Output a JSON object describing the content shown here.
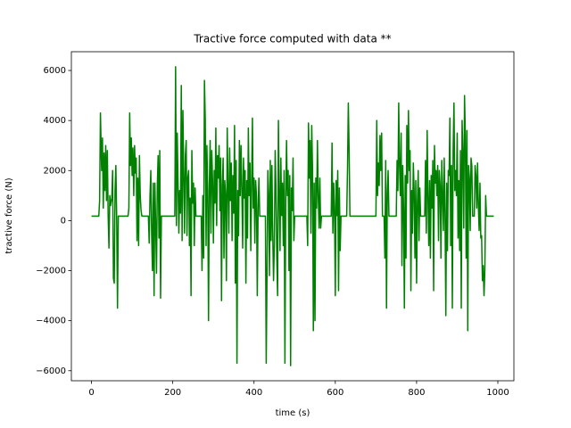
{
  "chart_data": {
    "type": "line",
    "title": "Tractive force computed with data **",
    "xlabel": "time (s)",
    "ylabel": "tractive force (N)",
    "color": "#008000",
    "xlim": [
      -49.5,
      1039.5
    ],
    "ylim": [
      -6400,
      6750
    ],
    "xticks": [
      0,
      200,
      400,
      600,
      800,
      1000
    ],
    "yticks": [
      {
        "value": -6000,
        "label": "−6000"
      },
      {
        "value": -4000,
        "label": "−4000"
      },
      {
        "value": -2000,
        "label": "−2000"
      },
      0,
      2000,
      4000,
      6000
    ],
    "x": [
      0,
      18,
      20,
      22,
      25,
      27,
      29,
      31,
      33,
      35,
      37,
      39,
      41,
      43,
      45,
      47,
      50,
      52,
      54,
      56,
      58,
      60,
      62,
      64,
      66,
      90,
      92,
      94,
      96,
      98,
      100,
      102,
      104,
      106,
      108,
      110,
      112,
      114,
      116,
      118,
      120,
      122,
      124,
      140,
      142,
      144,
      146,
      148,
      150,
      152,
      154,
      156,
      158,
      160,
      162,
      164,
      166,
      168,
      170,
      172,
      195,
      205,
      207,
      209,
      211,
      213,
      215,
      217,
      219,
      221,
      223,
      225,
      227,
      229,
      231,
      233,
      235,
      237,
      239,
      241,
      243,
      245,
      247,
      249,
      251,
      253,
      255,
      257,
      270,
      272,
      274,
      276,
      278,
      280,
      282,
      284,
      286,
      288,
      290,
      292,
      294,
      296,
      298,
      300,
      302,
      304,
      306,
      308,
      310,
      312,
      314,
      316,
      318,
      320,
      322,
      324,
      326,
      328,
      330,
      332,
      334,
      336,
      338,
      340,
      342,
      344,
      346,
      348,
      350,
      352,
      354,
      356,
      358,
      360,
      362,
      364,
      366,
      368,
      370,
      372,
      374,
      376,
      378,
      380,
      382,
      384,
      386,
      388,
      390,
      392,
      394,
      396,
      398,
      400,
      402,
      404,
      406,
      408,
      410,
      412,
      414,
      428,
      430,
      432,
      434,
      436,
      438,
      440,
      442,
      444,
      446,
      448,
      450,
      452,
      454,
      456,
      458,
      460,
      462,
      464,
      466,
      468,
      470,
      472,
      474,
      476,
      478,
      480,
      482,
      484,
      486,
      488,
      490,
      492,
      494,
      496,
      498,
      500,
      520,
      530,
      532,
      534,
      536,
      538,
      540,
      542,
      544,
      546,
      548,
      550,
      552,
      554,
      556,
      558,
      560,
      562,
      564,
      566,
      590,
      592,
      594,
      596,
      598,
      600,
      602,
      604,
      606,
      608,
      610,
      612,
      614,
      628,
      630,
      632,
      634,
      636,
      700,
      702,
      704,
      706,
      708,
      710,
      712,
      714,
      716,
      720,
      722,
      724,
      726,
      728,
      730,
      732,
      750,
      752,
      754,
      756,
      758,
      760,
      762,
      764,
      766,
      768,
      770,
      772,
      774,
      776,
      778,
      780,
      782,
      784,
      786,
      788,
      790,
      792,
      794,
      796,
      798,
      800,
      802,
      804,
      806,
      808,
      810,
      820,
      822,
      824,
      826,
      828,
      830,
      832,
      834,
      836,
      838,
      840,
      842,
      844,
      846,
      848,
      850,
      852,
      854,
      856,
      858,
      860,
      862,
      864,
      866,
      868,
      870,
      872,
      874,
      876,
      878,
      880,
      882,
      884,
      886,
      888,
      890,
      892,
      894,
      896,
      898,
      900,
      902,
      904,
      906,
      908,
      910,
      912,
      914,
      916,
      918,
      920,
      922,
      924,
      926,
      928,
      930,
      932,
      934,
      936,
      938,
      942,
      944,
      946,
      948,
      950,
      952,
      954,
      956,
      958,
      960,
      962,
      964,
      966,
      968,
      970,
      972,
      990
    ],
    "values": [
      180,
      180,
      800,
      4300,
      2000,
      3300,
      500,
      2700,
      1200,
      3000,
      800,
      2800,
      200,
      -1100,
      1000,
      600,
      900,
      2000,
      -2300,
      -2500,
      1200,
      2200,
      100,
      -3500,
      180,
      180,
      500,
      4300,
      2200,
      3300,
      1800,
      2900,
      1000,
      3000,
      1900,
      2500,
      -800,
      1700,
      -1000,
      2600,
      1000,
      400,
      180,
      180,
      -900,
      1000,
      2000,
      -500,
      -2000,
      1500,
      -3000,
      1500,
      -200,
      -2100,
      1400,
      2600,
      -700,
      2800,
      -3100,
      180,
      180,
      180,
      6150,
      -200,
      3500,
      1500,
      -500,
      1200,
      300,
      5400,
      -800,
      4400,
      1800,
      -500,
      2600,
      3200,
      -600,
      1700,
      2000,
      -1000,
      900,
      -3000,
      2800,
      700,
      1500,
      -1000,
      1300,
      180,
      180,
      -2000,
      1000,
      -1500,
      5600,
      4000,
      -1000,
      3000,
      1200,
      -4000,
      1400,
      3200,
      -500,
      2800,
      1600,
      -900,
      2000,
      700,
      3700,
      -200,
      2600,
      1700,
      3000,
      400,
      2500,
      -3200,
      1400,
      2500,
      -1500,
      1600,
      1000,
      -2400,
      3700,
      1300,
      -500,
      2900,
      800,
      2300,
      -800,
      1800,
      300,
      3800,
      -2500,
      2400,
      -5700,
      1200,
      -600,
      3200,
      1000,
      3000,
      1300,
      -1100,
      2500,
      900,
      2000,
      -2500,
      1600,
      -700,
      3700,
      1000,
      2300,
      -1200,
      1400,
      4100,
      500,
      1700,
      -900,
      1600,
      1000,
      -3000,
      500,
      1700,
      180,
      180,
      -5700,
      -2000,
      2000,
      1100,
      -2200,
      2400,
      -800,
      2200,
      -500,
      -2400,
      -1000,
      2800,
      1300,
      -1500,
      -3000,
      4000,
      1200,
      -1200,
      2500,
      200,
      1500,
      -1000,
      2000,
      -5700,
      800,
      3200,
      1000,
      2000,
      -2000,
      1800,
      -5800,
      1300,
      400,
      2500,
      -800,
      180,
      180,
      180,
      -1000,
      3900,
      1700,
      3200,
      -500,
      3800,
      2000,
      -4400,
      1500,
      -4000,
      1700,
      500,
      3200,
      1000,
      -300,
      1700,
      -300,
      180,
      180,
      3100,
      -500,
      1500,
      500,
      -3000,
      1600,
      200,
      2000,
      -2800,
      1300,
      -1200,
      180,
      180,
      2000,
      4700,
      2800,
      180,
      180,
      4000,
      1000,
      2300,
      1400,
      3400,
      2000,
      3500,
      180,
      180,
      -1500,
      2400,
      -3500,
      1100,
      2000,
      180,
      180,
      2400,
      1200,
      4700,
      2200,
      1000,
      3500,
      -1800,
      2200,
      500,
      -3500,
      1800,
      -1500,
      3800,
      1500,
      4400,
      2000,
      2800,
      -2800,
      1200,
      -500,
      2300,
      1200,
      -1500,
      1600,
      -2500,
      700,
      2000,
      -800,
      1300,
      180,
      180,
      2400,
      -500,
      3600,
      1000,
      -1000,
      1600,
      -1500,
      1800,
      500,
      2400,
      -2800,
      3000,
      1500,
      2000,
      1000,
      2200,
      -800,
      2000,
      1400,
      -1500,
      2400,
      1000,
      -400,
      2500,
      300,
      -3800,
      1500,
      -1200,
      2000,
      1800,
      4100,
      -1000,
      2200,
      -3500,
      2800,
      4700,
      1200,
      2000,
      1000,
      3500,
      -700,
      1600,
      -1200,
      2800,
      -3500,
      4000,
      2700,
      -300,
      5000,
      3400,
      -1500,
      3600,
      -4400,
      2200,
      1700,
      -400,
      2500,
      2200,
      180,
      180,
      2200,
      1800,
      500,
      2300,
      600,
      -400,
      1500,
      -700,
      -600,
      -2400,
      -1800,
      -3000,
      -2000,
      1000,
      180,
      180
    ]
  }
}
